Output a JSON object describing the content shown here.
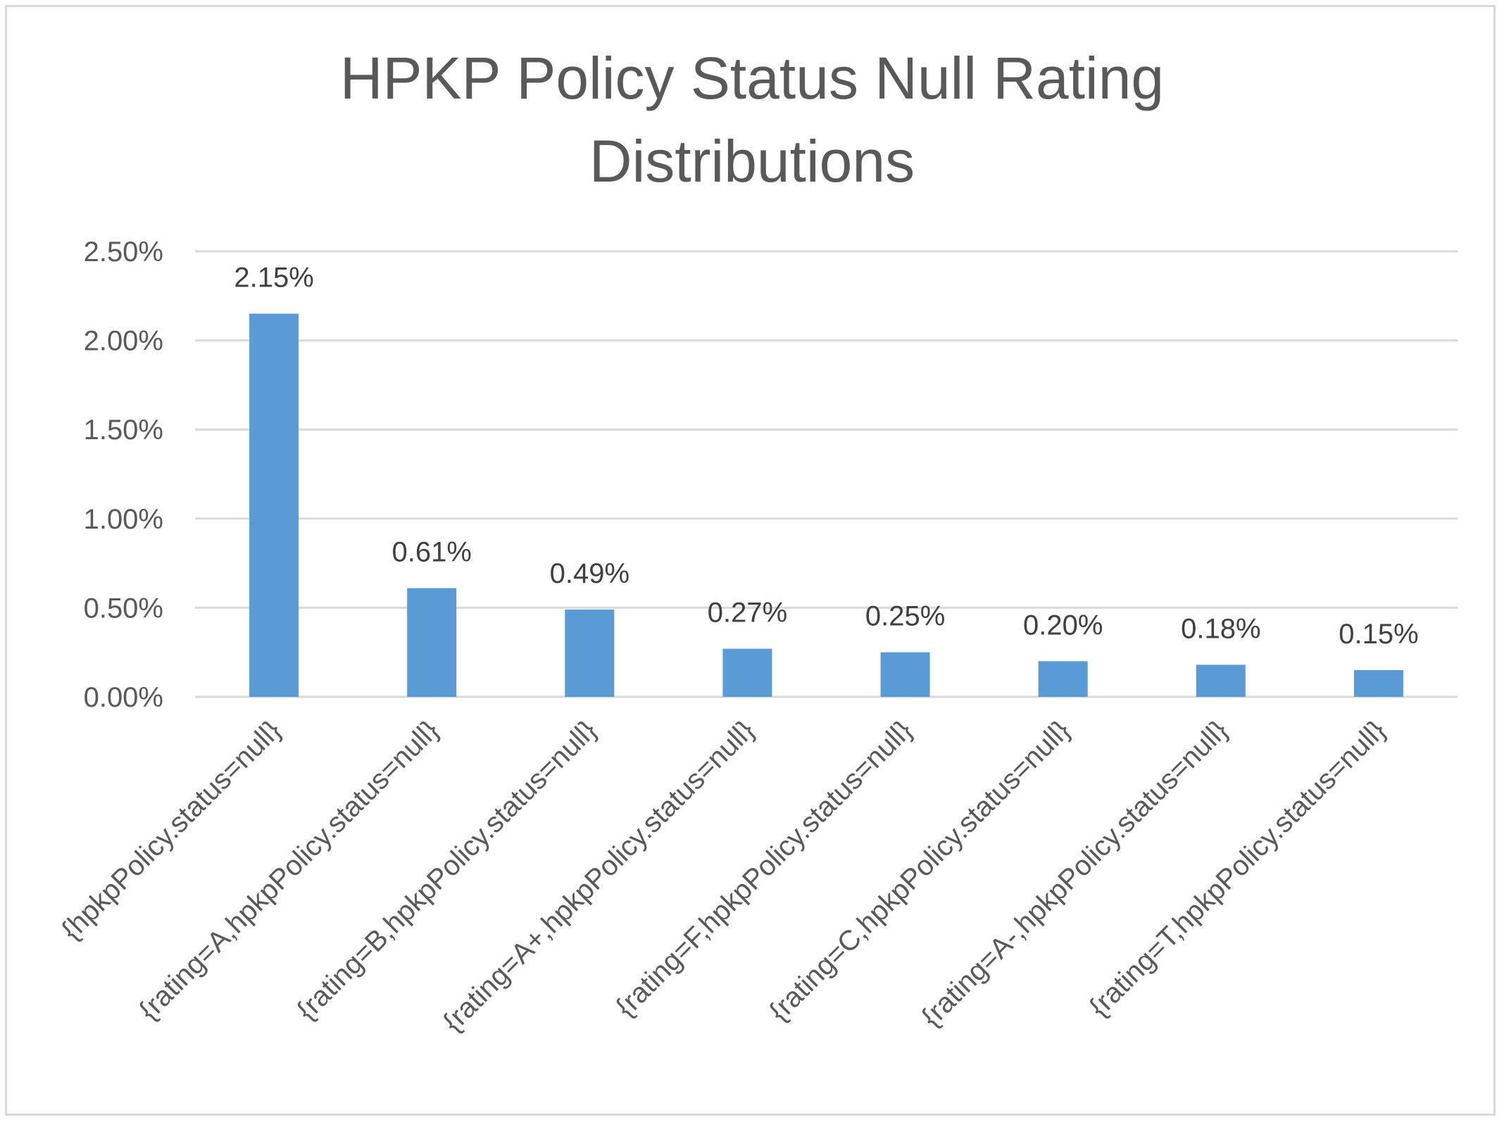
{
  "chart_data": {
    "type": "bar",
    "title_lines": [
      "HPKP Policy Status Null Rating",
      "Distributions"
    ],
    "xlabel": "",
    "ylabel": "",
    "categories": [
      "{hpkpPolicy.status=null}",
      "{rating=A,hpkpPolicy.status=null}",
      "{rating=B,hpkpPolicy.status=null}",
      "{rating=A+,hpkpPolicy.status=null}",
      "{rating=F,hpkpPolicy.status=null}",
      "{rating=C,hpkpPolicy.status=null}",
      "{rating=A-,hpkpPolicy.status=null}",
      "{rating=T,hpkpPolicy.status=null}"
    ],
    "values": [
      2.15,
      0.61,
      0.49,
      0.27,
      0.25,
      0.2,
      0.18,
      0.15
    ],
    "data_labels": [
      "2.15%",
      "0.61%",
      "0.49%",
      "0.27%",
      "0.25%",
      "0.20%",
      "0.18%",
      "0.15%"
    ],
    "yticks": [
      0,
      0.5,
      1.0,
      1.5,
      2.0,
      2.5
    ],
    "ytick_labels": [
      "0.00%",
      "0.50%",
      "1.00%",
      "1.50%",
      "2.00%",
      "2.50%"
    ],
    "ylim": [
      0,
      2.5
    ],
    "grid": true,
    "legend": "none",
    "colors": {
      "bar": "#5b9bd5",
      "grid": "#d9d9d9"
    }
  }
}
